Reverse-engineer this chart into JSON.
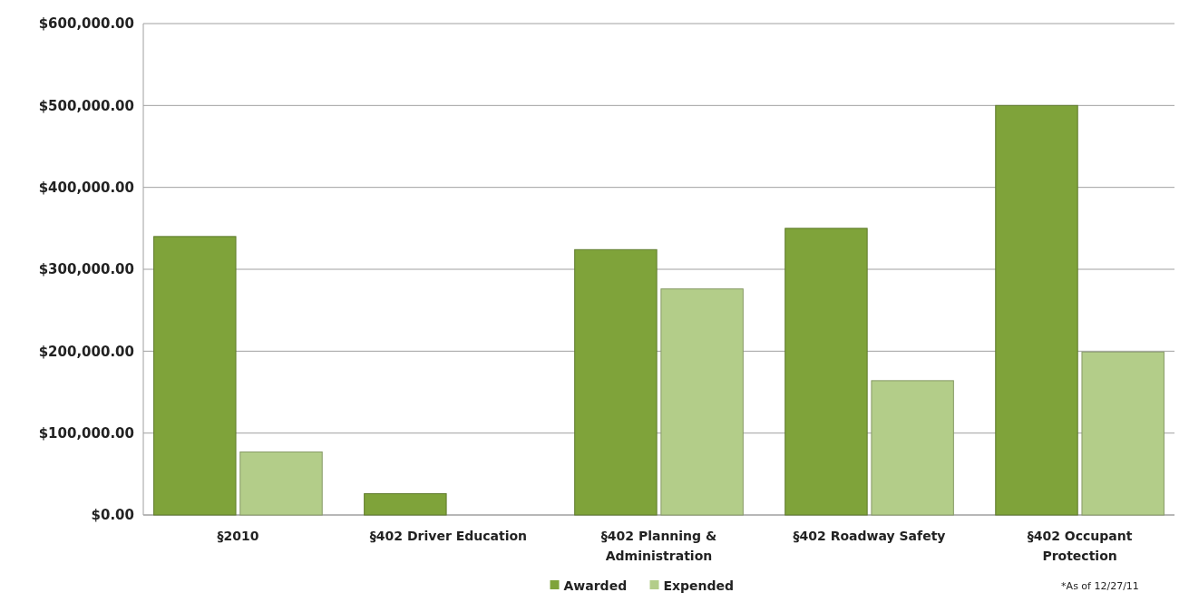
{
  "chart_data": {
    "type": "bar",
    "categories": [
      "§2010",
      "§402 Driver Education",
      "§402 Planning & Administration",
      "§402 Roadway Safety",
      "§402 Occupant Protection"
    ],
    "series": [
      {
        "name": "Awarded",
        "color": "#7fa33a",
        "values": [
          340000,
          26000,
          324000,
          350000,
          500000
        ]
      },
      {
        "name": "Expended",
        "color": "#b3cd89",
        "values": [
          77000,
          0,
          276000,
          164000,
          199000
        ]
      }
    ],
    "ylim": [
      0,
      600000
    ],
    "yticks": [
      {
        "value": 0,
        "label": "$0.00"
      },
      {
        "value": 100000,
        "label": "$100,000.00"
      },
      {
        "value": 200000,
        "label": "$200,000.00"
      },
      {
        "value": 300000,
        "label": "$300,000.00"
      },
      {
        "value": 400000,
        "label": "$400,000.00"
      },
      {
        "value": 500000,
        "label": "$500,000.00"
      },
      {
        "value": 600000,
        "label": "$600,000.00"
      }
    ],
    "grid": "y",
    "legend": "bottom",
    "annotations": [
      "*As of 12/27/11"
    ]
  }
}
